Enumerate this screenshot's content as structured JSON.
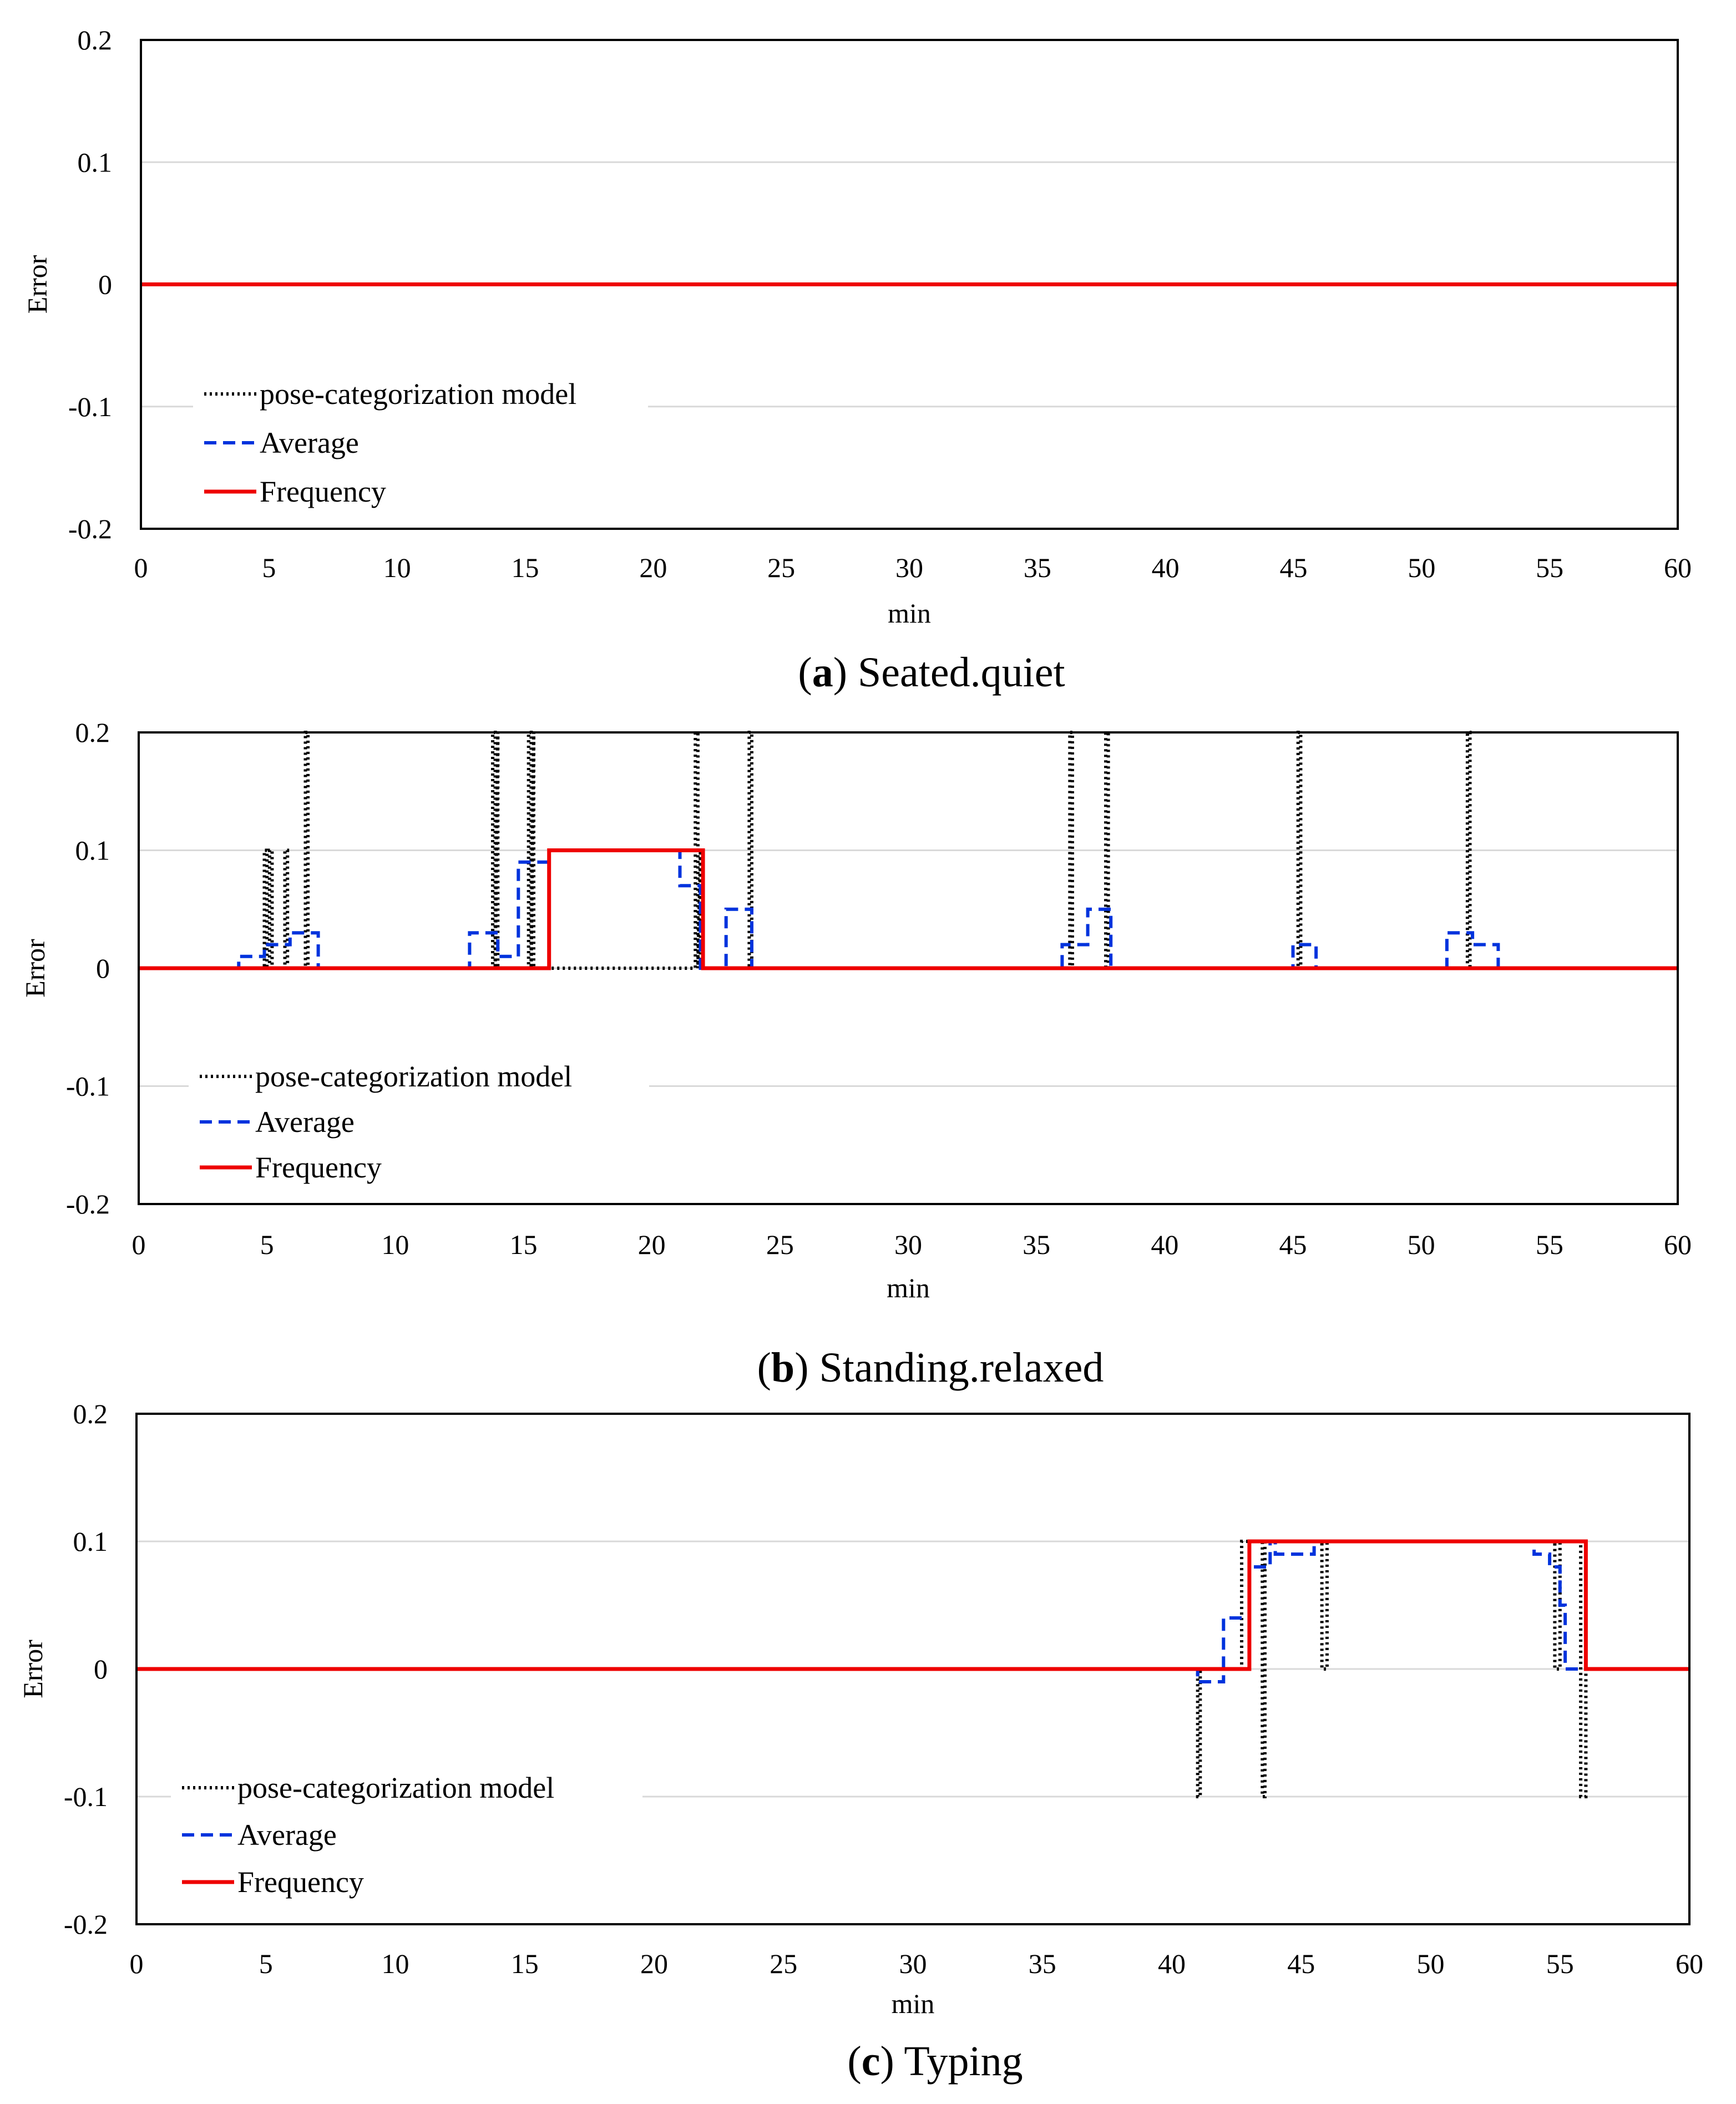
{
  "chart_data": [
    {
      "type": "line",
      "caption_letter": "a",
      "caption_text": "Seated.quiet",
      "xlabel": "min",
      "ylabel": "Error",
      "xlim": [
        0,
        60
      ],
      "ylim": [
        -0.2,
        0.2
      ],
      "xticks": [
        "0",
        "5",
        "10",
        "15",
        "20",
        "25",
        "30",
        "35",
        "40",
        "45",
        "50",
        "55",
        "60"
      ],
      "yticks": [
        "0.2",
        "0.1",
        "0",
        "-0.1",
        "-0.2"
      ],
      "grid": true,
      "legend_position": "bottom-left",
      "series": [
        {
          "name": "pose-categorization model",
          "style": "dotted",
          "color": "#000000",
          "x": [
            0,
            60
          ],
          "y": [
            0,
            0
          ]
        },
        {
          "name": "Average",
          "style": "dashed",
          "color": "#0033dd",
          "x": [
            0,
            60
          ],
          "y": [
            0,
            0
          ]
        },
        {
          "name": "Frequency",
          "style": "solid",
          "color": "#ee0000",
          "x": [
            0,
            60
          ],
          "y": [
            0,
            0
          ]
        }
      ]
    },
    {
      "type": "line",
      "caption_letter": "b",
      "caption_text": "Standing.relaxed",
      "xlabel": "min",
      "ylabel": "Error",
      "xlim": [
        0,
        60
      ],
      "ylim": [
        -0.2,
        0.2
      ],
      "xticks": [
        "0",
        "5",
        "10",
        "15",
        "20",
        "25",
        "30",
        "35",
        "40",
        "45",
        "50",
        "55",
        "60"
      ],
      "yticks": [
        "0.2",
        "0.1",
        "0",
        "-0.1",
        "-0.2"
      ],
      "grid": true,
      "legend_position": "bottom-left",
      "series": [
        {
          "name": "pose-categorization model",
          "style": "dotted",
          "color": "#000000",
          "x": [
            0,
            4.9,
            4.9,
            5.0,
            5.0,
            5.1,
            5.1,
            5.2,
            5.2,
            5.7,
            5.7,
            5.8,
            5.8,
            6.5,
            6.5,
            6.6,
            6.6,
            13.8,
            13.8,
            13.9,
            13.9,
            14.0,
            14.0,
            15.2,
            15.2,
            15.3,
            15.3,
            15.4,
            15.4,
            21.7,
            21.7,
            21.8,
            21.8,
            21.9,
            21.9,
            23.8,
            23.8,
            23.9,
            23.9,
            36.3,
            36.3,
            36.4,
            36.4,
            37.7,
            37.7,
            37.8,
            37.8,
            45.2,
            45.2,
            45.3,
            45.3,
            51.8,
            51.8,
            51.9,
            51.9,
            60
          ],
          "y": [
            0,
            0,
            0.1,
            0.1,
            0,
            0,
            0.1,
            0.1,
            0,
            0,
            0.1,
            0.1,
            0,
            0,
            0.2,
            0.2,
            0,
            0,
            0.2,
            0.2,
            0,
            0.2,
            0,
            0,
            0.2,
            0.2,
            0,
            0.2,
            0,
            0,
            0.2,
            0.2,
            0,
            0.1,
            0,
            0,
            0.2,
            0.2,
            0,
            0,
            0.2,
            0.2,
            0,
            0,
            0.2,
            0.2,
            0,
            0,
            0.2,
            0.2,
            0,
            0,
            0.2,
            0.2,
            0,
            0
          ]
        },
        {
          "name": "Average",
          "style": "dashed",
          "color": "#0033dd",
          "x": [
            0,
            3.9,
            3.9,
            4.9,
            4.9,
            5.9,
            5.9,
            6.1,
            6.1,
            7.0,
            7.0,
            12.9,
            12.9,
            14.0,
            14.0,
            14.8,
            14.8,
            15.2,
            15.2,
            15.6,
            15.6,
            16.0,
            16.0,
            20.9,
            20.9,
            21.1,
            21.1,
            21.9,
            21.9,
            22.9,
            22.9,
            23.9,
            23.9,
            36.0,
            36.0,
            37.0,
            37.0,
            37.9,
            37.9,
            45.0,
            45.0,
            45.9,
            45.9,
            51.0,
            51.0,
            52.0,
            52.0,
            53.0,
            53.0,
            60
          ],
          "y": [
            0,
            0,
            0.01,
            0.01,
            0.02,
            0.02,
            0.03,
            0.03,
            0.03,
            0.03,
            0,
            0,
            0.03,
            0.03,
            0.01,
            0.01,
            0.09,
            0.09,
            0.09,
            0.09,
            0.09,
            0.09,
            0.1,
            0.1,
            0.1,
            0.1,
            0.07,
            0.07,
            0,
            0,
            0.05,
            0.05,
            0,
            0,
            0.02,
            0.02,
            0.05,
            0.05,
            0,
            0,
            0.02,
            0.02,
            0,
            0,
            0.03,
            0.03,
            0.02,
            0.02,
            0,
            0
          ]
        },
        {
          "name": "Frequency",
          "style": "solid",
          "color": "#ee0000",
          "x": [
            0,
            16.0,
            16.0,
            22.0,
            22.0,
            60
          ],
          "y": [
            0,
            0,
            0.1,
            0.1,
            0,
            0
          ]
        }
      ]
    },
    {
      "type": "line",
      "caption_letter": "c",
      "caption_text": "Typing",
      "xlabel": "min",
      "ylabel": "Error",
      "xlim": [
        0,
        60
      ],
      "ylim": [
        -0.2,
        0.2
      ],
      "xticks": [
        "0",
        "5",
        "10",
        "15",
        "20",
        "25",
        "30",
        "35",
        "40",
        "45",
        "50",
        "55",
        "60"
      ],
      "yticks": [
        "0.2",
        "0.1",
        "0",
        "-0.1",
        "-0.2"
      ],
      "grid": true,
      "legend_position": "bottom-left",
      "series": [
        {
          "name": "pose-categorization model",
          "style": "dotted",
          "color": "#000000",
          "x": [
            0,
            41.0,
            41.0,
            41.1,
            41.1,
            42.7,
            42.7,
            43.0,
            43.0,
            43.5,
            43.5,
            43.6,
            43.6,
            44.0,
            44.0,
            45.8,
            45.8,
            46.0,
            46.0,
            54.8,
            54.8,
            55.0,
            55.0,
            55.8,
            55.8,
            56.0,
            56.0,
            60
          ],
          "y": [
            0,
            0,
            -0.1,
            -0.1,
            0,
            0,
            0.1,
            0.1,
            0.1,
            0.1,
            -0.1,
            -0.1,
            0.1,
            0.1,
            0.1,
            0.1,
            0,
            0,
            0.1,
            0.1,
            0,
            0,
            0.1,
            0.1,
            -0.1,
            -0.1,
            0,
            0
          ]
        },
        {
          "name": "Average",
          "style": "dashed",
          "color": "#0033dd",
          "x": [
            0,
            41.0,
            41.0,
            42.0,
            42.0,
            43.0,
            43.0,
            43.8,
            43.8,
            44.0,
            44.0,
            45.0,
            45.0,
            45.5,
            45.5,
            46.0,
            46.0,
            54.0,
            54.0,
            54.6,
            54.6,
            55.0,
            55.0,
            55.2,
            55.2,
            56.0,
            56.0,
            60
          ],
          "y": [
            0,
            0,
            -0.01,
            -0.01,
            0.04,
            0.04,
            0.08,
            0.08,
            0.1,
            0.1,
            0.09,
            0.09,
            0.09,
            0.09,
            0.1,
            0.1,
            0.1,
            0.1,
            0.09,
            0.09,
            0.08,
            0.08,
            0.05,
            0.05,
            0,
            0,
            0,
            0
          ]
        },
        {
          "name": "Frequency",
          "style": "solid",
          "color": "#ee0000",
          "x": [
            0,
            43.0,
            43.0,
            56.0,
            56.0,
            60
          ],
          "y": [
            0,
            0,
            0.1,
            0.1,
            0,
            0
          ]
        }
      ]
    }
  ]
}
